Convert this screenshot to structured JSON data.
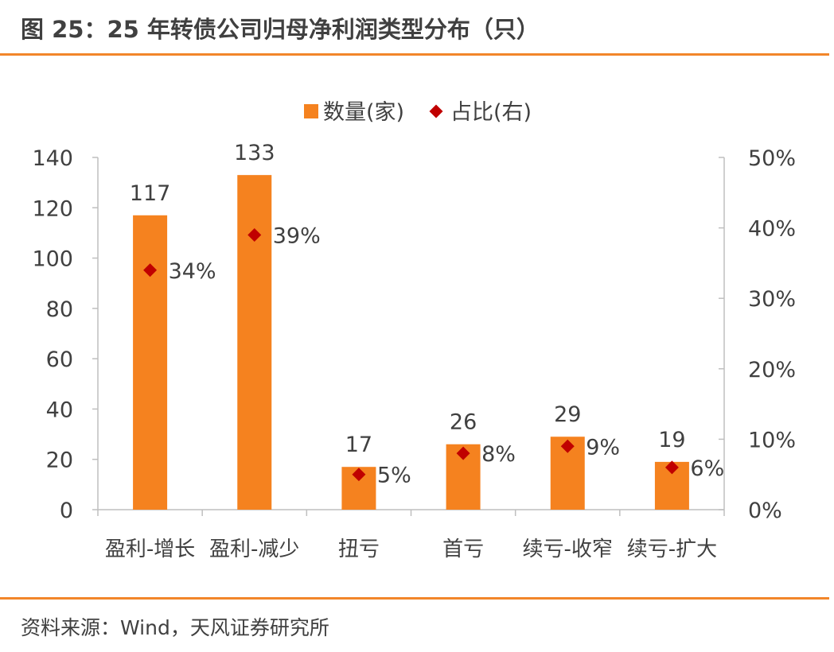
{
  "title": "图 25：25 年转债公司归母净利润类型分布（只）",
  "source": "资料来源：Wind，天风证券研究所",
  "colors": {
    "accent": "#f2862a",
    "bar": "#f5821f",
    "marker": "#c00000",
    "axis": "#bfbfbf",
    "text": "#404040"
  },
  "chart_data": {
    "type": "bar",
    "categories": [
      "盈利-增长",
      "盈利-减少",
      "扭亏",
      "首亏",
      "续亏-收窄",
      "续亏-扩大"
    ],
    "series": [
      {
        "name": "数量(家)",
        "type": "bar",
        "axis": "left",
        "values": [
          117,
          133,
          17,
          26,
          29,
          19
        ],
        "labels": [
          "117",
          "133",
          "17",
          "26",
          "29",
          "19"
        ]
      },
      {
        "name": "占比(右)",
        "type": "scatter",
        "axis": "right",
        "values": [
          34,
          39,
          5,
          8,
          9,
          6
        ],
        "labels": [
          "34%",
          "39%",
          "5%",
          "8%",
          "9%",
          "6%"
        ]
      }
    ],
    "y_left": {
      "min": 0,
      "max": 140,
      "ticks": [
        "0",
        "20",
        "40",
        "60",
        "80",
        "100",
        "120",
        "140"
      ]
    },
    "y_right": {
      "min": 0,
      "max": 50,
      "ticks": [
        "0%",
        "10%",
        "20%",
        "30%",
        "40%",
        "50%"
      ]
    },
    "legend_position": "top-center",
    "grid": false
  }
}
